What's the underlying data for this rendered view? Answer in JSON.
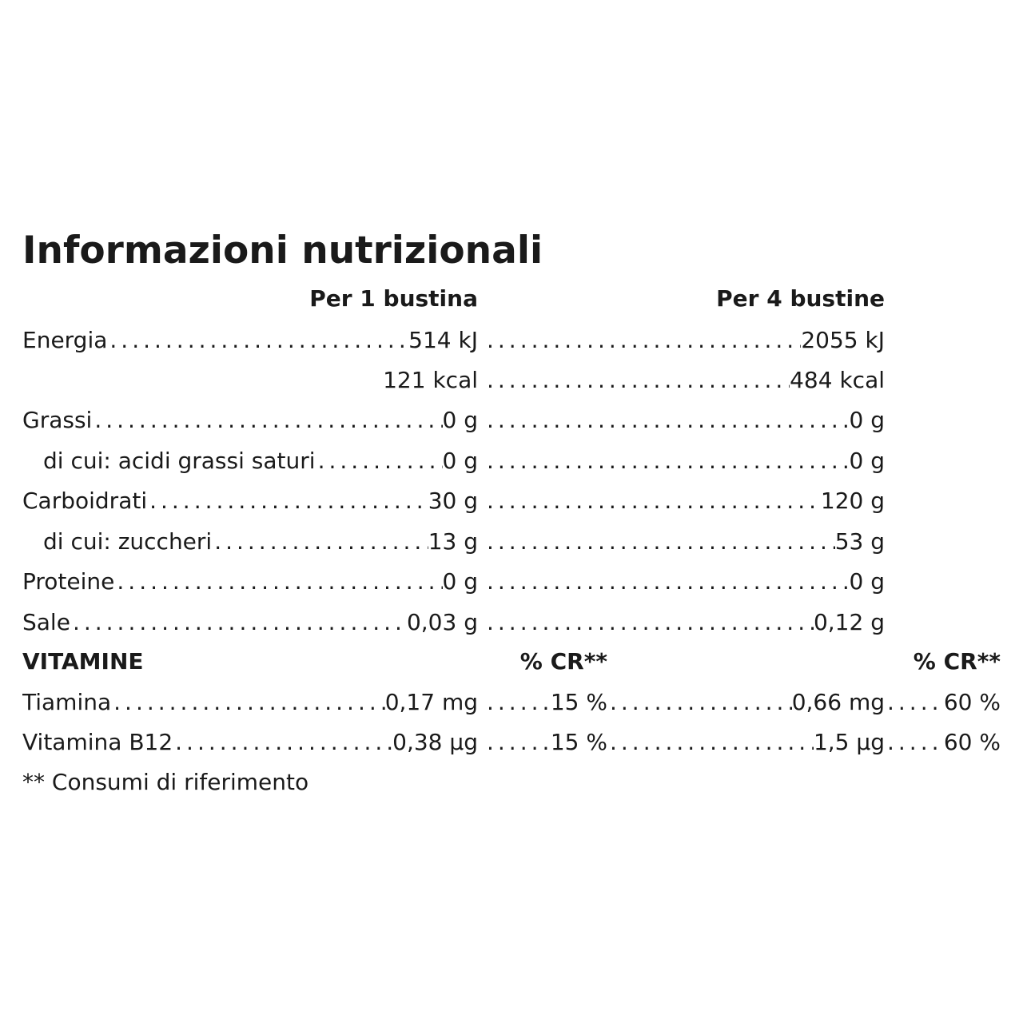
{
  "title": "Informazioni nutrizionali",
  "columns": {
    "per_1": "Per 1 bustina",
    "per_4": "Per 4 bustine"
  },
  "nutrients": [
    {
      "name": "Energia",
      "per_1": "514 kJ",
      "per_4": "2055 kJ"
    },
    {
      "name": "",
      "per_1": "121 kcal",
      "per_4": "484 kcal"
    },
    {
      "name": "Grassi",
      "per_1": "0 g",
      "per_4": "0 g"
    },
    {
      "name": "di cui: acidi grassi saturi",
      "per_1": "0 g",
      "per_4": "0 g"
    },
    {
      "name": "Carboidrati",
      "per_1": "30 g",
      "per_4": "120 g"
    },
    {
      "name": "di cui: zuccheri",
      "per_1": "13 g",
      "per_4": "53 g"
    },
    {
      "name": "Proteine",
      "per_1": "0 g",
      "per_4": "0 g"
    },
    {
      "name": "Sale",
      "per_1": "0,03 g",
      "per_4": "0,12 g"
    }
  ],
  "vitamins": {
    "heading": "VITAMINE",
    "cr_heading_1": "% CR**",
    "cr_heading_4": "% CR**",
    "rows": [
      {
        "name": "Tiamina",
        "per_1": "0,17 mg",
        "cr_1": "15 %",
        "per_4": "0,66 mg",
        "cr_4": "60 %"
      },
      {
        "name": "Vitamina B12",
        "per_1": "0,38 µg",
        "cr_1": "15 %",
        "per_4": "1,5 µg",
        "cr_4": "60 %"
      }
    ]
  },
  "footnote": "** Consumi di riferimento"
}
